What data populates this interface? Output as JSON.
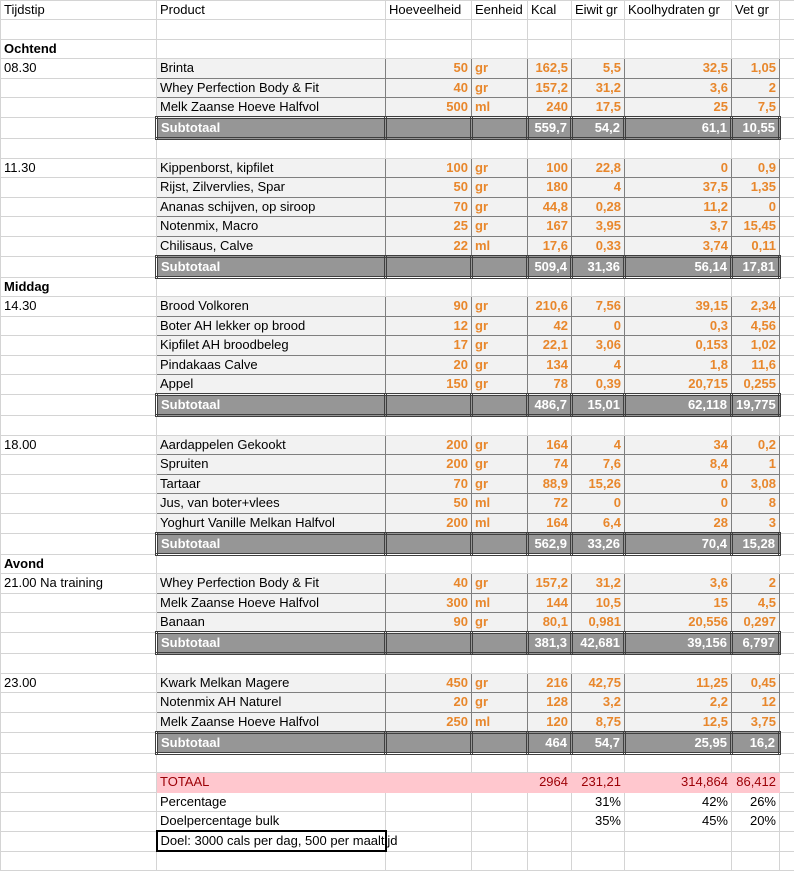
{
  "headers": [
    "Tijdstip",
    "Product",
    "Hoeveelheid",
    "Eenheid",
    "Kcal",
    "Eiwit gr",
    "Koolhydraten gr",
    "Vet gr"
  ],
  "subtotal_label": "Subtotaal",
  "meals": [
    {
      "section": "Ochtend",
      "time": "08.30",
      "items": [
        [
          "Brinta",
          "50",
          "gr",
          "162,5",
          "5,5",
          "32,5",
          "1,05"
        ],
        [
          "Whey Perfection Body & Fit",
          "40",
          "gr",
          "157,2",
          "31,2",
          "3,6",
          "2"
        ],
        [
          "Melk Zaanse Hoeve Halfvol",
          "500",
          "ml",
          "240",
          "17,5",
          "25",
          "7,5"
        ]
      ],
      "subtotal": [
        "559,7",
        "54,2",
        "61,1",
        "10,55"
      ]
    },
    {
      "section": null,
      "time": "11.30",
      "items": [
        [
          "Kippenborst, kipfilet",
          "100",
          "gr",
          "100",
          "22,8",
          "0",
          "0,9"
        ],
        [
          "Rijst, Zilvervlies, Spar",
          "50",
          "gr",
          "180",
          "4",
          "37,5",
          "1,35"
        ],
        [
          "Ananas schijven, op siroop",
          "70",
          "gr",
          "44,8",
          "0,28",
          "11,2",
          "0"
        ],
        [
          "Notenmix, Macro",
          "25",
          "gr",
          "167",
          "3,95",
          "3,7",
          "15,45"
        ],
        [
          "Chilisaus, Calve",
          "22",
          "ml",
          "17,6",
          "0,33",
          "3,74",
          "0,11"
        ]
      ],
      "subtotal": [
        "509,4",
        "31,36",
        "56,14",
        "17,81"
      ]
    },
    {
      "section": "Middag",
      "time": "14.30",
      "items": [
        [
          "Brood Volkoren",
          "90",
          "gr",
          "210,6",
          "7,56",
          "39,15",
          "2,34"
        ],
        [
          "Boter AH lekker op brood",
          "12",
          "gr",
          "42",
          "0",
          "0,3",
          "4,56"
        ],
        [
          "Kipfilet AH broodbeleg",
          "17",
          "gr",
          "22,1",
          "3,06",
          "0,153",
          "1,02"
        ],
        [
          "Pindakaas Calve",
          "20",
          "gr",
          "134",
          "4",
          "1,8",
          "11,6"
        ],
        [
          "Appel",
          "150",
          "gr",
          "78",
          "0,39",
          "20,715",
          "0,255"
        ]
      ],
      "subtotal": [
        "486,7",
        "15,01",
        "62,118",
        "19,775"
      ]
    },
    {
      "section": null,
      "time": "18.00",
      "items": [
        [
          "Aardappelen Gekookt",
          "200",
          "gr",
          "164",
          "4",
          "34",
          "0,2"
        ],
        [
          "Spruiten",
          "200",
          "gr",
          "74",
          "7,6",
          "8,4",
          "1"
        ],
        [
          "Tartaar",
          "70",
          "gr",
          "88,9",
          "15,26",
          "0",
          "3,08"
        ],
        [
          "Jus, van boter+vlees",
          "50",
          "ml",
          "72",
          "0",
          "0",
          "8"
        ],
        [
          "Yoghurt Vanille Melkan Halfvol",
          "200",
          "ml",
          "164",
          "6,4",
          "28",
          "3"
        ]
      ],
      "subtotal": [
        "562,9",
        "33,26",
        "70,4",
        "15,28"
      ]
    },
    {
      "section": "Avond",
      "time": "21.00 Na training",
      "items": [
        [
          "Whey Perfection Body & Fit",
          "40",
          "gr",
          "157,2",
          "31,2",
          "3,6",
          "2"
        ],
        [
          "Melk Zaanse Hoeve Halfvol",
          "300",
          "ml",
          "144",
          "10,5",
          "15",
          "4,5"
        ],
        [
          "Banaan",
          "90",
          "gr",
          "80,1",
          "0,981",
          "20,556",
          "0,297"
        ]
      ],
      "subtotal": [
        "381,3",
        "42,681",
        "39,156",
        "6,797"
      ]
    },
    {
      "section": null,
      "time": "23.00",
      "items": [
        [
          "Kwark Melkan Magere",
          "450",
          "gr",
          "216",
          "42,75",
          "11,25",
          "0,45"
        ],
        [
          "Notenmix AH Naturel",
          "20",
          "gr",
          "128",
          "3,2",
          "2,2",
          "12"
        ],
        [
          "Melk Zaanse Hoeve Halfvol",
          "250",
          "ml",
          "120",
          "8,75",
          "12,5",
          "3,75"
        ]
      ],
      "subtotal": [
        "464",
        "54,7",
        "25,95",
        "16,2"
      ]
    }
  ],
  "totaal": {
    "label": "TOTAAL",
    "values": [
      "2964",
      "231,21",
      "314,864",
      "86,412"
    ]
  },
  "percentage": {
    "label": "Percentage",
    "values": [
      "31%",
      "42%",
      "26%"
    ]
  },
  "doelpercentage": {
    "label": "Doelpercentage bulk",
    "values": [
      "35%",
      "45%",
      "20%"
    ]
  },
  "note": "Doel: 3000 cals per dag, 500 per maaltijd",
  "colors": {
    "orange": "#e8872c",
    "subtotal_bg": "#969696",
    "total_bg": "#ffc7ce",
    "total_text": "#9c0006"
  }
}
